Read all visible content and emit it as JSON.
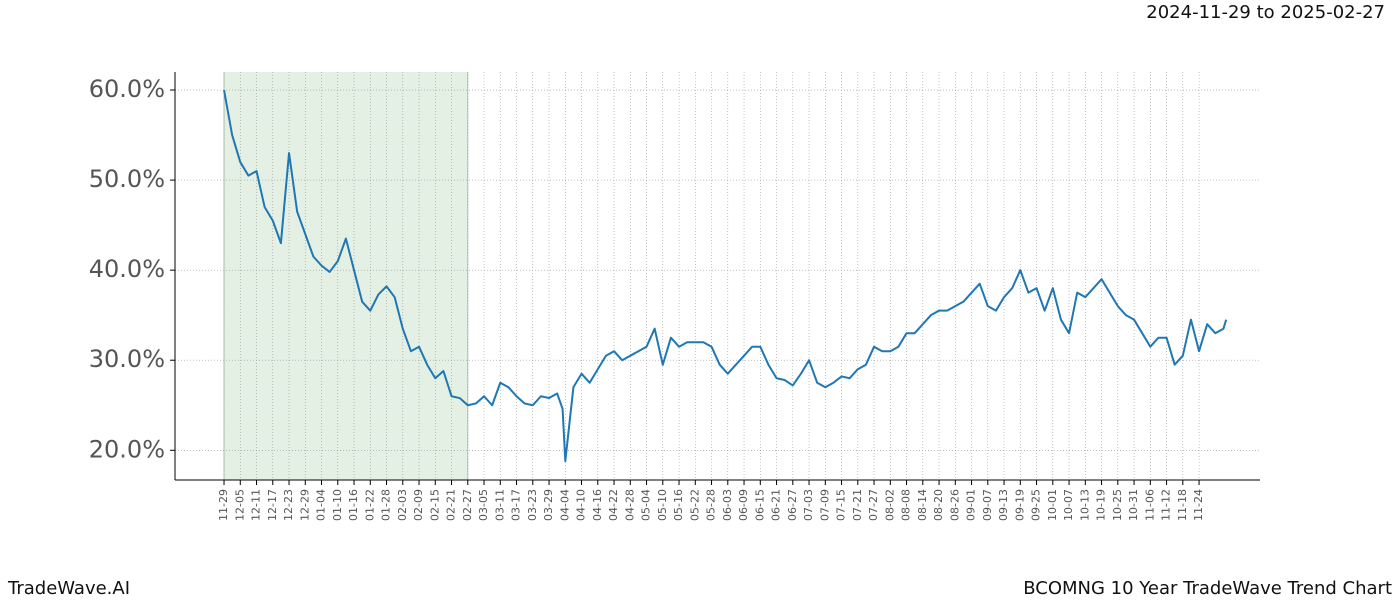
{
  "chart_data": {
    "type": "line",
    "title": "2024-11-29 to 2025-02-27",
    "footer_left": "TradeWave.AI",
    "footer_right": "BCOMNG 10 Year TradeWave Trend Chart",
    "color": "#1f77b4",
    "shade_xlim": [
      0,
      90
    ],
    "shade_color": "#e3f0e3",
    "grid": true,
    "xlim": [
      -18.1,
      382.5
    ],
    "ylim": [
      16.7,
      62
    ],
    "yticks": [
      {
        "value": 20,
        "label": "20.0%"
      },
      {
        "value": 30,
        "label": "30.0%"
      },
      {
        "value": 40,
        "label": "40.0%"
      },
      {
        "value": 50,
        "label": "50.0%"
      },
      {
        "value": 60,
        "label": "60.0%"
      }
    ],
    "xticks": [
      {
        "value": 0,
        "label": "11-29"
      },
      {
        "value": 6,
        "label": "12-05"
      },
      {
        "value": 12,
        "label": "12-11"
      },
      {
        "value": 18,
        "label": "12-17"
      },
      {
        "value": 24,
        "label": "12-23"
      },
      {
        "value": 30,
        "label": "12-29"
      },
      {
        "value": 36,
        "label": "01-04"
      },
      {
        "value": 42,
        "label": "01-10"
      },
      {
        "value": 48,
        "label": "01-16"
      },
      {
        "value": 54,
        "label": "01-22"
      },
      {
        "value": 60,
        "label": "01-28"
      },
      {
        "value": 66,
        "label": "02-03"
      },
      {
        "value": 72,
        "label": "02-09"
      },
      {
        "value": 78,
        "label": "02-15"
      },
      {
        "value": 84,
        "label": "02-21"
      },
      {
        "value": 90,
        "label": "02-27"
      },
      {
        "value": 96,
        "label": "03-05"
      },
      {
        "value": 102,
        "label": "03-11"
      },
      {
        "value": 108,
        "label": "03-17"
      },
      {
        "value": 114,
        "label": "03-23"
      },
      {
        "value": 120,
        "label": "03-29"
      },
      {
        "value": 126,
        "label": "04-04"
      },
      {
        "value": 132,
        "label": "04-10"
      },
      {
        "value": 138,
        "label": "04-16"
      },
      {
        "value": 144,
        "label": "04-22"
      },
      {
        "value": 150,
        "label": "04-28"
      },
      {
        "value": 156,
        "label": "05-04"
      },
      {
        "value": 162,
        "label": "05-10"
      },
      {
        "value": 168,
        "label": "05-16"
      },
      {
        "value": 174,
        "label": "05-22"
      },
      {
        "value": 180,
        "label": "05-28"
      },
      {
        "value": 186,
        "label": "06-03"
      },
      {
        "value": 192,
        "label": "06-09"
      },
      {
        "value": 198,
        "label": "06-15"
      },
      {
        "value": 204,
        "label": "06-21"
      },
      {
        "value": 210,
        "label": "06-27"
      },
      {
        "value": 216,
        "label": "07-03"
      },
      {
        "value": 222,
        "label": "07-09"
      },
      {
        "value": 228,
        "label": "07-15"
      },
      {
        "value": 234,
        "label": "07-21"
      },
      {
        "value": 240,
        "label": "07-27"
      },
      {
        "value": 246,
        "label": "08-02"
      },
      {
        "value": 252,
        "label": "08-08"
      },
      {
        "value": 258,
        "label": "08-14"
      },
      {
        "value": 264,
        "label": "08-20"
      },
      {
        "value": 270,
        "label": "08-26"
      },
      {
        "value": 276,
        "label": "09-01"
      },
      {
        "value": 282,
        "label": "09-07"
      },
      {
        "value": 288,
        "label": "09-13"
      },
      {
        "value": 294,
        "label": "09-19"
      },
      {
        "value": 300,
        "label": "09-25"
      },
      {
        "value": 306,
        "label": "10-01"
      },
      {
        "value": 312,
        "label": "10-07"
      },
      {
        "value": 318,
        "label": "10-13"
      },
      {
        "value": 324,
        "label": "10-19"
      },
      {
        "value": 330,
        "label": "10-25"
      },
      {
        "value": 336,
        "label": "10-31"
      },
      {
        "value": 342,
        "label": "11-06"
      },
      {
        "value": 348,
        "label": "11-12"
      },
      {
        "value": 354,
        "label": "11-18"
      },
      {
        "value": 360,
        "label": "11-24"
      }
    ],
    "x": [
      0,
      3,
      6,
      9,
      12,
      15,
      18,
      21,
      24,
      27,
      30,
      33,
      36,
      39,
      42,
      45,
      48,
      51,
      54,
      57,
      60,
      63,
      66,
      69,
      72,
      75,
      78,
      81,
      84,
      87,
      90,
      93,
      96,
      99,
      102,
      105,
      108,
      111,
      114,
      117,
      120,
      123,
      125,
      126,
      129,
      132,
      135,
      138,
      141,
      144,
      147,
      150,
      153,
      156,
      159,
      162,
      165,
      168,
      171,
      174,
      177,
      180,
      183,
      186,
      189,
      192,
      195,
      198,
      201,
      204,
      207,
      210,
      213,
      216,
      219,
      222,
      225,
      228,
      231,
      234,
      237,
      240,
      243,
      246,
      249,
      252,
      255,
      258,
      261,
      264,
      267,
      270,
      273,
      276,
      279,
      282,
      285,
      288,
      291,
      294,
      297,
      300,
      303,
      306,
      309,
      312,
      315,
      318,
      321,
      324,
      327,
      330,
      333,
      336,
      339,
      342,
      345,
      348,
      351,
      354,
      357,
      360,
      363,
      366,
      369,
      370
    ],
    "values": [
      60,
      55,
      52,
      50.5,
      51,
      47,
      45.5,
      43,
      53,
      46.5,
      44,
      41.5,
      40.5,
      39.8,
      41,
      43.5,
      40,
      36.5,
      35.5,
      37.3,
      38.2,
      37,
      33.5,
      31,
      31.5,
      29.5,
      28,
      28.8,
      26,
      25.8,
      25,
      25.2,
      26,
      25,
      27.5,
      27,
      26,
      25.2,
      25,
      26,
      25.8,
      26.3,
      24.6,
      18.8,
      27,
      28.5,
      27.5,
      29,
      30.5,
      31,
      30,
      30.5,
      31,
      31.5,
      33.5,
      29.5,
      32.5,
      31.5,
      32,
      32,
      32,
      31.5,
      29.5,
      28.5,
      29.5,
      30.5,
      31.5,
      31.5,
      29.5,
      28,
      27.8,
      27.2,
      28.5,
      30,
      27.5,
      27,
      27.5,
      28.2,
      28,
      29,
      29.5,
      31.5,
      31,
      31,
      31.5,
      33,
      33,
      34,
      35,
      35.5,
      35.5,
      36,
      36.5,
      37.5,
      38.5,
      36,
      35.5,
      37,
      38,
      40,
      37.5,
      38,
      35.5,
      38,
      34.5,
      33,
      37.5,
      37,
      38,
      39,
      37.5,
      36,
      35,
      34.5,
      33,
      31.5,
      32.5,
      32.5,
      29.5,
      30.5,
      34.5,
      31,
      34,
      33,
      33.5,
      34.5
    ]
  }
}
